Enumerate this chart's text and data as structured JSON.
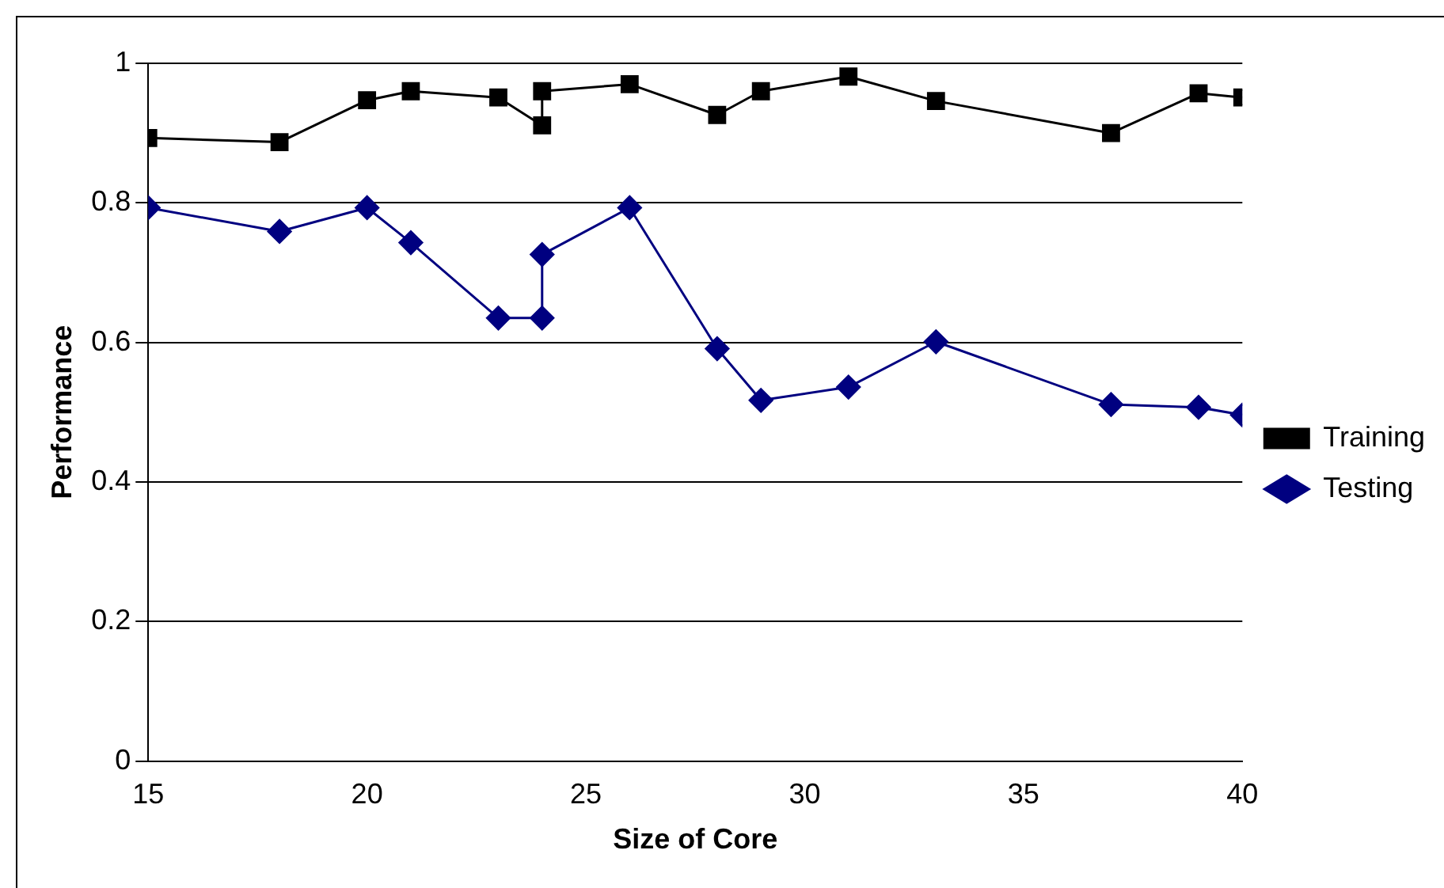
{
  "chart_data": {
    "type": "line",
    "xlabel": "Size of Core",
    "ylabel": "Performance",
    "xlim": [
      15,
      40
    ],
    "xticks": [
      15,
      20,
      25,
      30,
      35,
      40
    ],
    "ylim": [
      0,
      1
    ],
    "yticks": [
      0,
      0.2,
      0.4,
      0.6,
      0.8,
      1
    ],
    "grid": "y",
    "legend": "right",
    "line_style": "solid",
    "series": [
      {
        "name": "Training",
        "color": "#000000",
        "marker": "square",
        "x": [
          15,
          18,
          20,
          21,
          23,
          24,
          24,
          26,
          28,
          29,
          31,
          33,
          37,
          39,
          40
        ],
        "values": [
          0.893,
          0.887,
          0.947,
          0.96,
          0.951,
          0.911,
          0.96,
          0.97,
          0.926,
          0.96,
          0.981,
          0.946,
          0.9,
          0.957,
          0.951
        ]
      },
      {
        "name": "Testing",
        "color": "#000080",
        "marker": "diamond",
        "x": [
          15,
          18,
          20,
          21,
          23,
          24,
          24,
          26,
          28,
          29,
          31,
          33,
          37,
          39,
          40
        ],
        "values": [
          0.793,
          0.759,
          0.793,
          0.743,
          0.635,
          0.635,
          0.726,
          0.793,
          0.591,
          0.517,
          0.536,
          0.601,
          0.511,
          0.507,
          0.496
        ]
      }
    ]
  }
}
